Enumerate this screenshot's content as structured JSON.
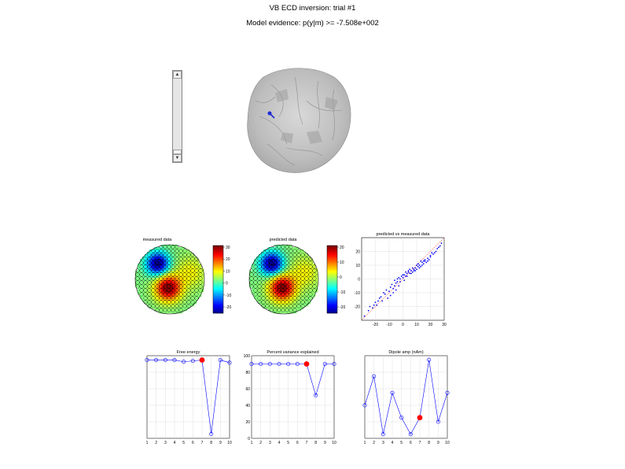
{
  "title_line1": "VB ECD inversion: trial #1",
  "title_line2": "Model evidence: p(y|m) >= -7.508e+002",
  "scrollbar": {
    "up_icon": "triangle-up",
    "down_icon": "triangle-down"
  },
  "topo_measured": {
    "title": "measured data",
    "colorbar_ticks": [
      "30",
      "20",
      "10",
      "0",
      "-10",
      "-20"
    ]
  },
  "topo_predicted": {
    "title": "predicted data",
    "colorbar_ticks": [
      "20",
      "10",
      "0",
      "-10",
      "-20"
    ]
  },
  "chart_data": [
    {
      "type": "scatter",
      "title": "predicted vs measured data",
      "xlim": [
        -30,
        30
      ],
      "ylim": [
        -30,
        30
      ],
      "xticks": [
        -20,
        -10,
        0,
        10,
        20,
        30
      ],
      "yticks": [
        -20,
        -10,
        0,
        10,
        20
      ],
      "grid": true,
      "series": [
        {
          "color": "#0000ff",
          "points": [
            [
              -28,
              -27
            ],
            [
              -25,
              -23
            ],
            [
              -22,
              -21
            ],
            [
              -20,
              -17
            ],
            [
              -18,
              -16
            ],
            [
              -16,
              -13
            ],
            [
              -15,
              -16
            ],
            [
              -13,
              -11
            ],
            [
              -12,
              -8
            ],
            [
              -10,
              -9
            ],
            [
              -9,
              -6
            ],
            [
              -8,
              -4
            ],
            [
              -7,
              -7
            ],
            [
              -6,
              -5
            ],
            [
              -5,
              -3
            ],
            [
              -4,
              -2
            ],
            [
              -3,
              1
            ],
            [
              -2,
              0
            ],
            [
              -1,
              2
            ],
            [
              0,
              1
            ],
            [
              1,
              3
            ],
            [
              2,
              2
            ],
            [
              3,
              4
            ],
            [
              4,
              5
            ],
            [
              5,
              4
            ],
            [
              6,
              6
            ],
            [
              7,
              5
            ],
            [
              8,
              7
            ],
            [
              9,
              8
            ],
            [
              10,
              7
            ],
            [
              11,
              9
            ],
            [
              12,
              10
            ],
            [
              13,
              9
            ],
            [
              14,
              12
            ],
            [
              15,
              11
            ],
            [
              16,
              13
            ],
            [
              17,
              12
            ],
            [
              18,
              15
            ],
            [
              19,
              14
            ],
            [
              20,
              16
            ],
            [
              22,
              18
            ],
            [
              24,
              20
            ],
            [
              26,
              23
            ],
            [
              28,
              26
            ],
            [
              -11,
              -14
            ],
            [
              -9,
              -12
            ],
            [
              -7,
              -10
            ],
            [
              -5,
              -8
            ],
            [
              -4,
              0
            ],
            [
              -2,
              -2
            ],
            [
              0,
              3
            ],
            [
              2,
              5
            ],
            [
              4,
              6
            ],
            [
              6,
              4
            ],
            [
              8,
              6
            ],
            [
              10,
              10
            ],
            [
              12,
              8
            ],
            [
              14,
              10
            ],
            [
              16,
              14
            ],
            [
              18,
              13
            ],
            [
              20,
              17
            ],
            [
              -14,
              -10
            ],
            [
              -17,
              -14
            ],
            [
              -19,
              -19
            ],
            [
              21,
              19
            ],
            [
              23,
              19
            ],
            [
              25,
              22
            ],
            [
              -6,
              -1
            ],
            [
              -3,
              -5
            ],
            [
              1,
              -1
            ],
            [
              3,
              2
            ],
            [
              5,
              7
            ],
            [
              7,
              8
            ],
            [
              9,
              6
            ],
            [
              11,
              11
            ],
            [
              13,
              13
            ],
            [
              15,
              13
            ],
            [
              -24,
              -20
            ],
            [
              -21,
              -19
            ],
            [
              27,
              24
            ]
          ]
        }
      ],
      "refline": true
    },
    {
      "type": "line",
      "title": "Free energy",
      "x": [
        1,
        2,
        3,
        4,
        5,
        6,
        7,
        8,
        9,
        10
      ],
      "y": [
        1.0,
        1.0,
        1.0,
        1.0,
        0.98,
        0.99,
        1.0,
        0.15,
        1.0,
        0.97
      ],
      "highlight_index": 6,
      "xlim": [
        1,
        10
      ],
      "xticks": [
        1,
        2,
        3,
        4,
        5,
        6,
        7,
        8,
        9,
        10
      ],
      "grid": true
    },
    {
      "type": "line",
      "title": "Percent variance explained",
      "x": [
        1,
        2,
        3,
        4,
        5,
        6,
        7,
        8,
        9,
        10
      ],
      "y": [
        90,
        90,
        90,
        90,
        90,
        90,
        90,
        52,
        90,
        90
      ],
      "highlight_index": 6,
      "xlim": [
        1,
        10
      ],
      "ylim": [
        0,
        100
      ],
      "xticks": [
        1,
        2,
        3,
        4,
        5,
        6,
        7,
        8,
        9,
        10
      ],
      "yticks": [
        0,
        20,
        40,
        60,
        80,
        100
      ],
      "grid": true
    },
    {
      "type": "line",
      "title": "Dipole amp (nAm)",
      "x": [
        1,
        2,
        3,
        4,
        5,
        6,
        7,
        8,
        9,
        10
      ],
      "y": [
        0.45,
        0.8,
        0.1,
        0.6,
        0.3,
        0.1,
        0.3,
        1.0,
        0.25,
        0.6
      ],
      "highlight_index": 6,
      "xlim": [
        1,
        10
      ],
      "xticks": [
        1,
        2,
        3,
        4,
        5,
        6,
        7,
        8,
        9,
        10
      ],
      "grid": true
    }
  ]
}
